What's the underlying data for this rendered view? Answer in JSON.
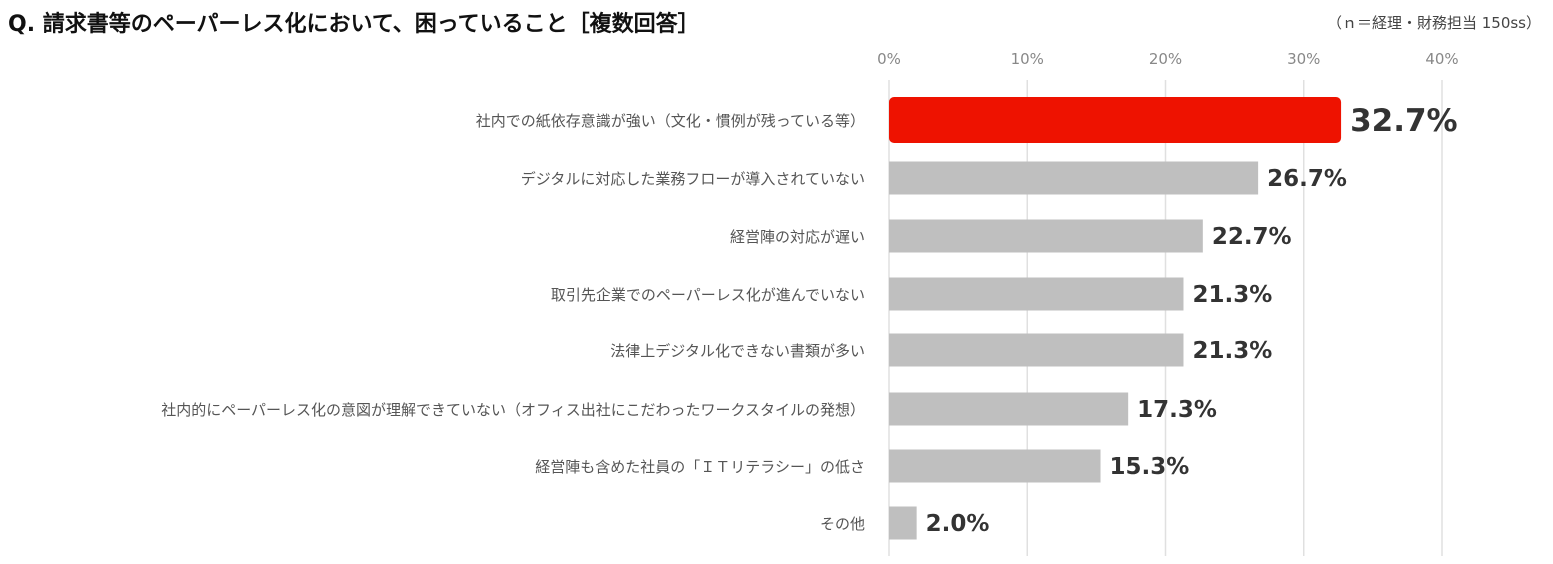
{
  "question": "Q. 請求書等のペーパーレス化において、困っていること［複数回答］",
  "note": "（ｎ＝経理・財務担当 150ss）",
  "colors": {
    "highlight": "#EE1200",
    "bar": "#BFBFBF",
    "grid": "#E0E0E0"
  },
  "chart_data": {
    "type": "bar",
    "orientation": "horizontal",
    "title": "Q. 請求書等のペーパーレス化において、困っていること［複数回答］",
    "xlim": [
      0,
      40
    ],
    "xticks": [
      "0%",
      "10%",
      "20%",
      "30%",
      "40%"
    ],
    "xtick_values": [
      0,
      10,
      20,
      30,
      40
    ],
    "grid": true,
    "categories": [
      "社内での紙依存意識が強い（文化・慣例が残っている等）",
      "デジタルに対応した業務フローが導入されていない",
      "経営陣の対応が遅い",
      "取引先企業でのペーパーレス化が進んでいない",
      "法律上デジタル化できない書類が多い",
      "社内的にペーパーレス化の意図が理解できていない（オフィス出社にこだわったワークスタイルの発想）",
      "経営陣も含めた社員の「ＩＴリテラシー」の低さ",
      "その他"
    ],
    "values": [
      32.7,
      26.7,
      22.7,
      21.3,
      21.3,
      17.3,
      15.3,
      2.0
    ],
    "value_labels": [
      "32.7%",
      "26.7%",
      "22.7%",
      "21.3%",
      "21.3%",
      "17.3%",
      "15.3%",
      "2.0%"
    ],
    "highlight_index": 0
  }
}
